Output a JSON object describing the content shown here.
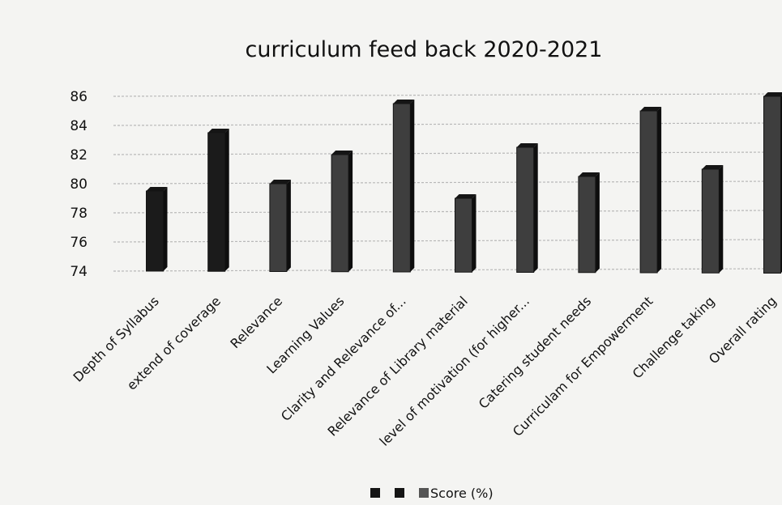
{
  "chart_data": {
    "type": "bar",
    "title": "curriculum feed back 2020-2021",
    "xlabel": "",
    "ylabel": "",
    "ylim": [
      74,
      86
    ],
    "yticks": [
      74,
      76,
      78,
      80,
      82,
      84,
      86
    ],
    "grid": true,
    "legend_position": "bottom",
    "categories": [
      "Depth of Syllabus",
      "extend of coverage",
      "Relevance",
      "Learning Values",
      "Clarity and Relevance of...",
      "Relevance of Library material",
      "level of motivation (for higher...",
      "Catering student needs",
      "Curriculam for Empowerment",
      "Challenge taking",
      "Overall rating"
    ],
    "series": [
      {
        "name": "Score (%)",
        "values": [
          79.5,
          83.5,
          80,
          82,
          85.5,
          79,
          82.5,
          80.5,
          85,
          81,
          86
        ]
      }
    ],
    "bar_colors": [
      "#1b1b1b",
      "#1b1b1b",
      "#3e3e3e",
      "#3e3e3e",
      "#3e3e3e",
      "#3e3e3e",
      "#3e3e3e",
      "#3e3e3e",
      "#3e3e3e",
      "#3e3e3e",
      "#3e3e3e"
    ]
  },
  "legend": {
    "label": "Score (%)",
    "swatch_colors": [
      "#151515",
      "#151515",
      "#555555"
    ]
  }
}
